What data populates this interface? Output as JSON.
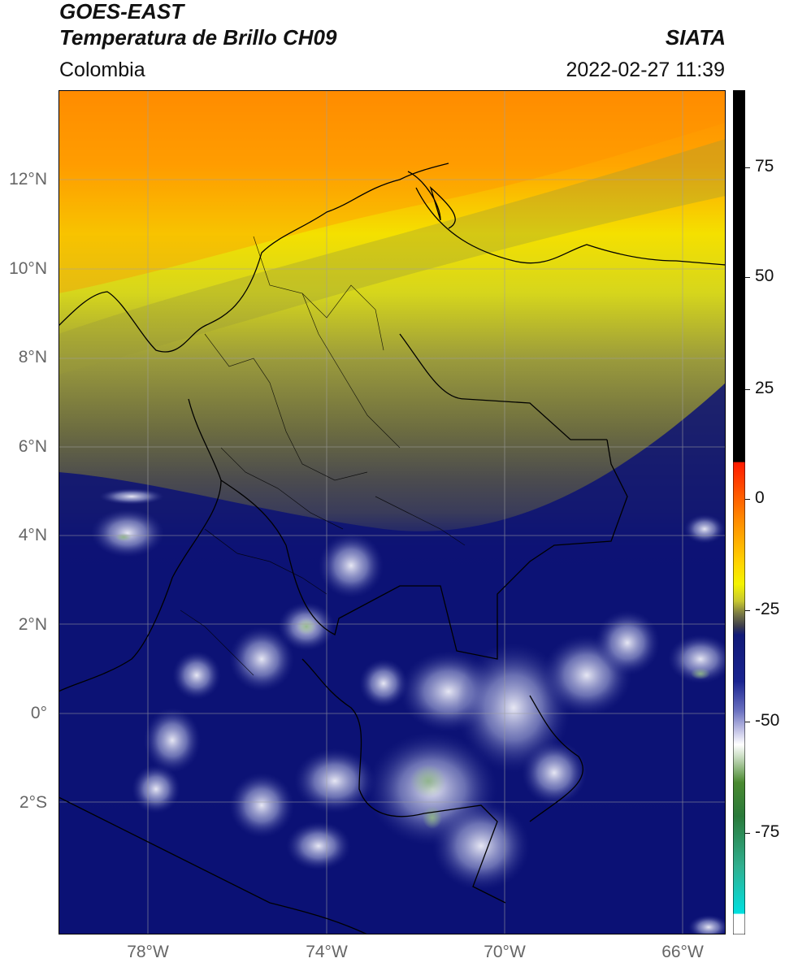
{
  "header": {
    "title_line1": "GOES-EAST",
    "title_line2": "Temperatura de Brillo CH09",
    "brand": "SIATA",
    "region": "Colombia",
    "timestamp": "2022-02-27 11:39"
  },
  "map": {
    "lat_labels": [
      "12°N",
      "10°N",
      "8°N",
      "6°N",
      "4°N",
      "2°N",
      "0°",
      "2°S"
    ],
    "lon_labels": [
      "78°W",
      "74°W",
      "70°W",
      "66°W"
    ],
    "colors": {
      "warm_orange": "#ff8c00",
      "yellow": "#f4f400",
      "olive": "#6e6e3a",
      "navy": "#0a1070",
      "cloud_white": "#e8e8f4",
      "border": "#000000"
    }
  },
  "colorbar": {
    "tick_labels": [
      "75",
      "50",
      "25",
      "0",
      "-25",
      "-50",
      "-75"
    ],
    "tick_values": [
      75,
      50,
      25,
      0,
      -25,
      -50,
      -75
    ],
    "range": [
      -95,
      90
    ]
  }
}
